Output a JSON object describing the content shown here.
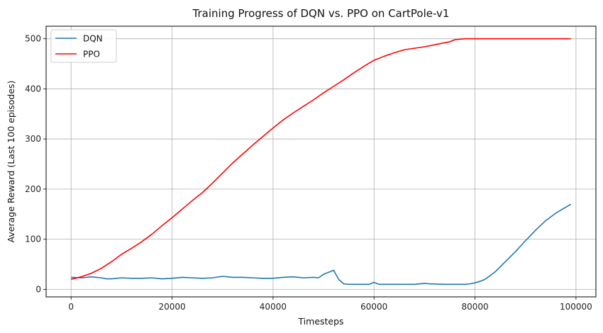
{
  "chart_data": {
    "type": "line",
    "title": "Training Progress of DQN vs. PPO on CartPole-v1",
    "xlabel": "Timesteps",
    "ylabel": "Average Reward (Last 100 episodes)",
    "xlim": [
      -4950,
      103950
    ],
    "ylim": [
      -15,
      525
    ],
    "xticks": [
      0,
      20000,
      40000,
      60000,
      80000,
      100000
    ],
    "yticks": [
      0,
      100,
      200,
      300,
      400,
      500
    ],
    "grid": true,
    "legend_position": "top-left",
    "series": [
      {
        "name": "DQN",
        "color": "#1f77b4",
        "x": [
          0,
          2000,
          4000,
          6000,
          7000,
          8000,
          10000,
          12000,
          14000,
          16000,
          18000,
          20000,
          22000,
          24000,
          26000,
          28000,
          30000,
          32000,
          34000,
          36000,
          38000,
          40000,
          42000,
          44000,
          46000,
          48000,
          49000,
          50000,
          52000,
          53000,
          54000,
          55000,
          57000,
          59000,
          60000,
          61000,
          64000,
          68000,
          70000,
          71000,
          74000,
          76000,
          78000,
          79000,
          80000,
          81000,
          82000,
          84000,
          86000,
          88000,
          90000,
          92000,
          94000,
          96000,
          97000,
          99000
        ],
        "y": [
          24,
          23,
          25,
          23,
          21,
          21,
          23,
          22,
          22,
          23,
          21,
          22,
          24,
          23,
          22,
          23,
          26,
          24,
          24,
          23,
          22,
          22,
          24,
          25,
          23,
          24,
          23,
          30,
          38,
          20,
          11,
          10,
          10,
          10,
          14,
          10,
          10,
          10,
          12,
          11,
          10,
          10,
          10,
          11,
          13,
          16,
          20,
          35,
          55,
          75,
          97,
          118,
          137,
          152,
          158,
          170
        ]
      },
      {
        "name": "PPO",
        "color": "#ff0000",
        "x": [
          0,
          2000,
          4000,
          6000,
          8000,
          10000,
          12000,
          14000,
          16000,
          18000,
          20000,
          22000,
          24000,
          26000,
          28000,
          30000,
          32000,
          34000,
          36000,
          38000,
          40000,
          42000,
          44000,
          46000,
          48000,
          50000,
          52000,
          54000,
          56000,
          58000,
          60000,
          62000,
          64000,
          66000,
          68000,
          70000,
          72000,
          74000,
          75000,
          76000,
          78000,
          80000,
          85000,
          90000,
          95000,
          99000
        ],
        "y": [
          20,
          25,
          32,
          42,
          55,
          70,
          82,
          95,
          110,
          127,
          143,
          160,
          177,
          193,
          212,
          232,
          252,
          270,
          288,
          305,
          322,
          338,
          352,
          365,
          378,
          392,
          405,
          418,
          432,
          445,
          457,
          465,
          472,
          478,
          481,
          484,
          488,
          492,
          494,
          498,
          500,
          500,
          500,
          500,
          500,
          500
        ]
      }
    ]
  }
}
